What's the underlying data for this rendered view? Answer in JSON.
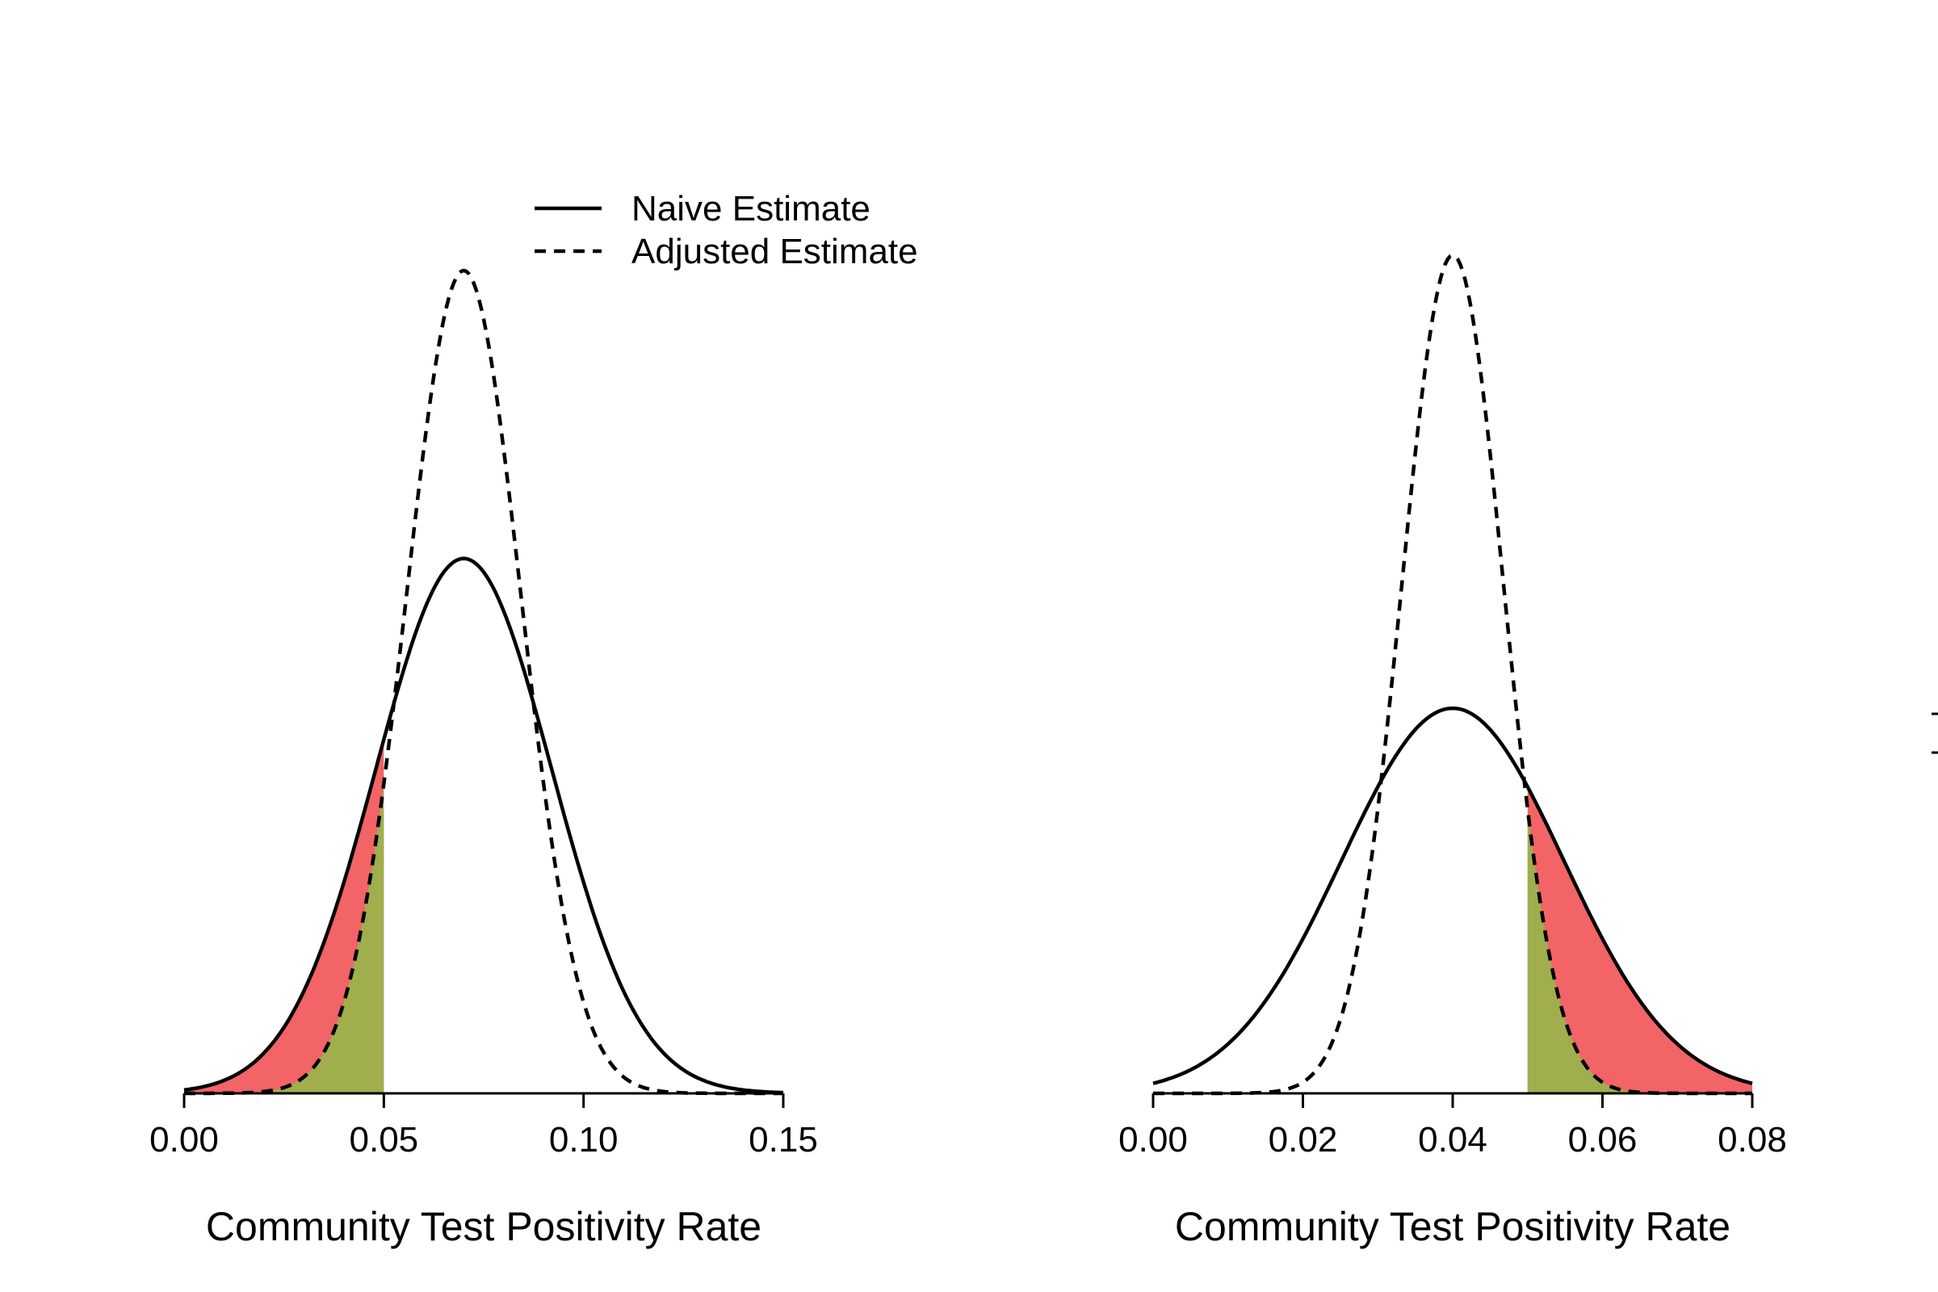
{
  "chart_data": [
    {
      "type": "line",
      "title": "",
      "xlabel": "Community Test Positivity Rate",
      "ylabel": "",
      "xlim": [
        0,
        0.15
      ],
      "xticks": [
        "0.00",
        "0.05",
        "0.10",
        "0.15"
      ],
      "xtick_values": [
        0,
        0.05,
        0.1,
        0.15
      ],
      "threshold": 0.05,
      "shaded_side": "below",
      "legend": {
        "placement": "top-right",
        "entries": [
          {
            "label": "Naive Estimate",
            "style": "solid"
          },
          {
            "label": "Adjusted Estimate",
            "style": "dashed"
          }
        ]
      },
      "series": [
        {
          "name": "Naive Estimate",
          "style": "solid",
          "distribution": "normal",
          "mean": 0.07,
          "sd": 0.022
        },
        {
          "name": "Adjusted Estimate",
          "style": "dashed",
          "distribution": "normal",
          "mean": 0.07,
          "sd": 0.0143
        }
      ],
      "shading": [
        {
          "name": "naive-tail",
          "color": "#F26466"
        },
        {
          "name": "adjusted-tail",
          "color": "#A0AE4D"
        }
      ]
    },
    {
      "type": "line",
      "title": "",
      "xlabel": "Community Test Positivity Rate",
      "ylabel": "",
      "xlim": [
        0,
        0.08
      ],
      "xticks": [
        "0.00",
        "0.02",
        "0.04",
        "0.06",
        "0.08"
      ],
      "xtick_values": [
        0,
        0.02,
        0.04,
        0.06,
        0.08
      ],
      "threshold": 0.05,
      "shaded_side": "above",
      "series": [
        {
          "name": "Naive Estimate",
          "style": "solid",
          "distribution": "normal",
          "mean": 0.04,
          "sd": 0.0148
        },
        {
          "name": "Adjusted Estimate",
          "style": "dashed",
          "distribution": "normal",
          "mean": 0.04,
          "sd": 0.0068
        }
      ],
      "shading": [
        {
          "name": "naive-tail",
          "color": "#F26466"
        },
        {
          "name": "adjusted-tail",
          "color": "#A0AE4D"
        }
      ]
    }
  ]
}
